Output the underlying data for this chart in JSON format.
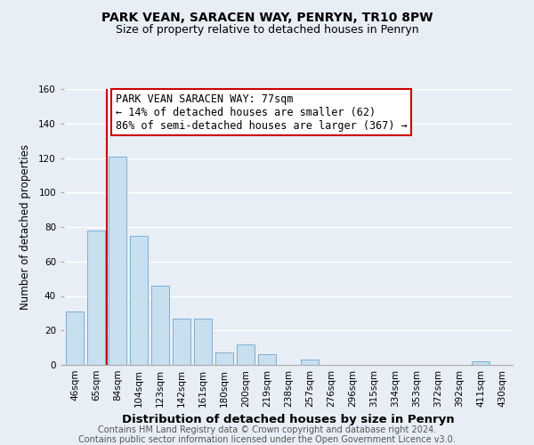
{
  "title": "PARK VEAN, SARACEN WAY, PENRYN, TR10 8PW",
  "subtitle": "Size of property relative to detached houses in Penryn",
  "xlabel": "Distribution of detached houses by size in Penryn",
  "ylabel": "Number of detached properties",
  "bar_color": "#c8dff0",
  "bar_edge_color": "#7aafd4",
  "categories": [
    "46sqm",
    "65sqm",
    "84sqm",
    "104sqm",
    "123sqm",
    "142sqm",
    "161sqm",
    "180sqm",
    "200sqm",
    "219sqm",
    "238sqm",
    "257sqm",
    "276sqm",
    "296sqm",
    "315sqm",
    "334sqm",
    "353sqm",
    "372sqm",
    "392sqm",
    "411sqm",
    "430sqm"
  ],
  "values": [
    31,
    78,
    121,
    75,
    46,
    27,
    27,
    7,
    12,
    6,
    0,
    3,
    0,
    0,
    0,
    0,
    0,
    0,
    0,
    2,
    0
  ],
  "vline_color": "#cc0000",
  "ylim": [
    0,
    160
  ],
  "yticks": [
    0,
    20,
    40,
    60,
    80,
    100,
    120,
    140,
    160
  ],
  "annotation_box_text": "PARK VEAN SARACEN WAY: 77sqm\n← 14% of detached houses are smaller (62)\n86% of semi-detached houses are larger (367) →",
  "footer_line1": "Contains HM Land Registry data © Crown copyright and database right 2024.",
  "footer_line2": "Contains public sector information licensed under the Open Government Licence v3.0.",
  "background_color": "#e8eef5",
  "plot_bg_color": "#e8eef5",
  "grid_color": "#ffffff",
  "title_fontsize": 10,
  "subtitle_fontsize": 9,
  "xlabel_fontsize": 9.5,
  "ylabel_fontsize": 8.5,
  "tick_fontsize": 7.5,
  "annotation_fontsize": 8.5,
  "footer_fontsize": 7
}
